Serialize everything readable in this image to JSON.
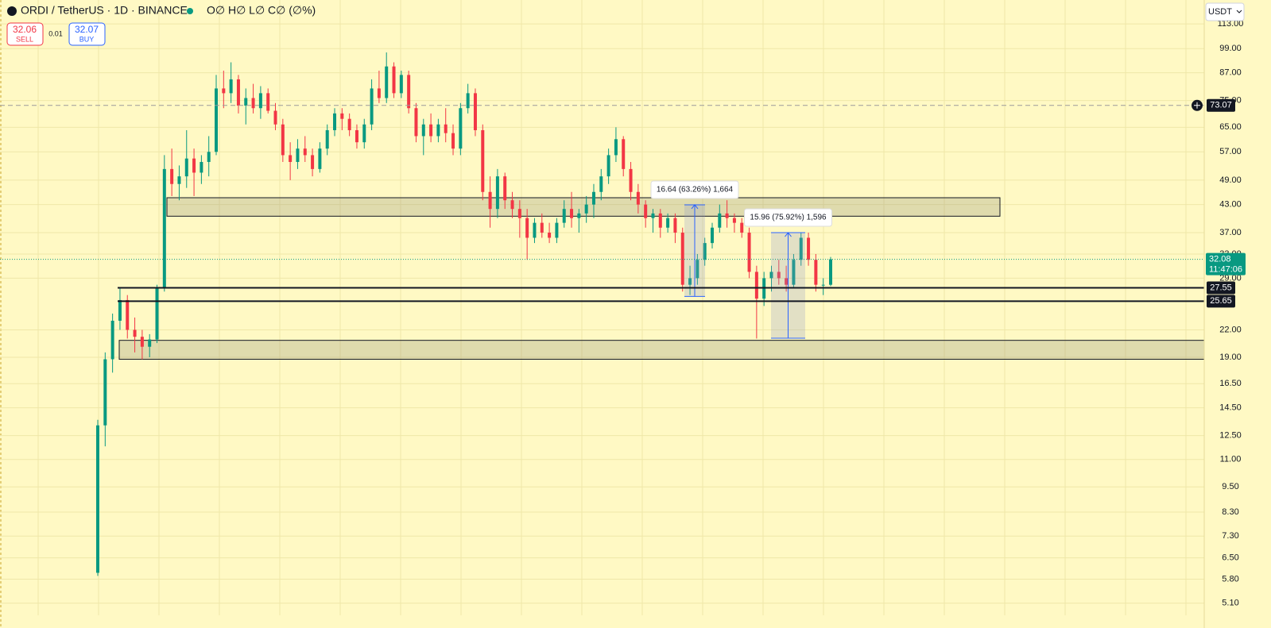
{
  "chart_data": {
    "type": "candlestick",
    "title": "ORDI / TetherUS · 1D · BINANCE",
    "ohlc_legend": "O∅ H∅ L∅ C∅ (∅%)",
    "sell": 32.06,
    "sell_label": "SELL",
    "spread": 0.01,
    "buy": 32.07,
    "buy_label": "BUY",
    "currency": "USDT",
    "log_scale": true,
    "grid": true,
    "up_color": "#089981",
    "down_color": "#f23645",
    "ylim": [
      4.78,
      128.4
    ],
    "yticks": [
      {
        "value": 5.1,
        "label": "5.10"
      },
      {
        "value": 5.8,
        "label": "5.80"
      },
      {
        "value": 6.5,
        "label": "6.50"
      },
      {
        "value": 7.3,
        "label": "7.30"
      },
      {
        "value": 8.3,
        "label": "8.30"
      },
      {
        "value": 9.5,
        "label": "9.50"
      },
      {
        "value": 11,
        "label": "11.00"
      },
      {
        "value": 12.5,
        "label": "12.50"
      },
      {
        "value": 14.5,
        "label": "14.50"
      },
      {
        "value": 16.5,
        "label": "16.50"
      },
      {
        "value": 19,
        "label": "19.00"
      },
      {
        "value": 22,
        "label": "22.00"
      },
      {
        "value": 29,
        "label": "29.00"
      },
      {
        "value": 33,
        "label": "33.00"
      },
      {
        "value": 37,
        "label": "37.00"
      },
      {
        "value": 43,
        "label": "43.00"
      },
      {
        "value": 49,
        "label": "49.00"
      },
      {
        "value": 57,
        "label": "57.00"
      },
      {
        "value": 65,
        "label": "65.00"
      },
      {
        "value": 75,
        "label": "75.00"
      },
      {
        "value": 87,
        "label": "87.00"
      },
      {
        "value": 99,
        "label": "99.00"
      },
      {
        "value": 113,
        "label": "113.00"
      }
    ],
    "ohlc": [
      [
        6.0,
        13.6,
        5.9,
        13.2
      ],
      [
        13.2,
        19.5,
        11.8,
        18.8
      ],
      [
        18.8,
        24.0,
        17.5,
        23.1
      ],
      [
        23.1,
        27.5,
        22.0,
        25.8
      ],
      [
        25.8,
        26.5,
        21.0,
        22.0
      ],
      [
        22.0,
        23.5,
        19.5,
        21.2
      ],
      [
        21.2,
        22.0,
        18.8,
        20.1
      ],
      [
        20.1,
        21.5,
        19.0,
        20.9
      ],
      [
        20.9,
        28.0,
        20.5,
        27.5
      ],
      [
        27.5,
        56,
        27.0,
        52
      ],
      [
        52,
        58,
        45,
        48
      ],
      [
        48,
        53,
        44,
        50
      ],
      [
        50,
        64,
        47,
        55
      ],
      [
        55,
        58,
        45,
        51
      ],
      [
        51,
        56,
        48,
        54
      ],
      [
        54,
        62,
        50,
        57
      ],
      [
        57,
        86,
        56,
        80
      ],
      [
        80,
        88,
        72,
        78
      ],
      [
        78,
        92,
        74,
        84
      ],
      [
        84,
        86,
        70,
        73
      ],
      [
        73,
        80,
        66,
        76
      ],
      [
        76,
        82,
        70,
        72
      ],
      [
        72,
        81,
        68,
        78
      ],
      [
        78,
        80,
        70,
        71
      ],
      [
        71,
        74,
        64,
        66
      ],
      [
        66,
        68,
        54,
        56
      ],
      [
        56,
        60,
        49,
        54
      ],
      [
        54,
        61,
        52,
        58
      ],
      [
        58,
        62,
        54,
        56
      ],
      [
        56,
        58,
        50,
        52
      ],
      [
        52,
        60,
        51,
        58
      ],
      [
        58,
        66,
        56,
        64
      ],
      [
        64,
        72,
        62,
        70
      ],
      [
        70,
        72,
        64,
        68
      ],
      [
        68,
        70,
        62,
        64
      ],
      [
        64,
        66,
        58,
        60
      ],
      [
        60,
        68,
        58,
        66
      ],
      [
        66,
        84,
        64,
        80
      ],
      [
        80,
        88,
        74,
        76
      ],
      [
        76,
        97,
        74,
        90
      ],
      [
        90,
        92,
        76,
        78
      ],
      [
        78,
        88,
        76,
        86
      ],
      [
        86,
        88,
        70,
        72
      ],
      [
        72,
        74,
        60,
        62
      ],
      [
        62,
        68,
        56,
        66
      ],
      [
        66,
        70,
        60,
        62
      ],
      [
        62,
        68,
        60,
        66
      ],
      [
        66,
        72,
        60,
        63
      ],
      [
        63,
        66,
        56,
        58
      ],
      [
        58,
        74,
        56,
        72
      ],
      [
        72,
        82,
        70,
        78
      ],
      [
        78,
        80,
        62,
        64
      ],
      [
        64,
        66,
        44,
        46
      ],
      [
        46,
        50,
        38,
        42
      ],
      [
        42,
        52,
        40,
        50
      ],
      [
        50,
        51,
        42,
        44
      ],
      [
        44,
        46,
        40,
        42
      ],
      [
        42,
        44,
        36,
        40
      ],
      [
        40,
        42,
        32,
        36
      ],
      [
        36,
        40,
        35,
        39
      ],
      [
        39,
        41,
        36,
        37
      ],
      [
        37,
        39,
        35,
        36
      ],
      [
        36,
        40,
        35,
        39
      ],
      [
        39,
        44,
        38,
        42
      ],
      [
        42,
        46,
        38,
        40
      ],
      [
        40,
        42,
        37,
        41
      ],
      [
        41,
        45,
        39,
        43
      ],
      [
        43,
        48,
        40,
        46
      ],
      [
        46,
        52,
        44,
        50
      ],
      [
        50,
        58,
        48,
        56
      ],
      [
        56,
        65,
        54,
        61
      ],
      [
        61,
        62,
        50,
        52
      ],
      [
        52,
        54,
        44,
        46
      ],
      [
        46,
        48,
        41,
        43
      ],
      [
        43,
        44,
        38,
        40
      ],
      [
        40,
        42,
        37,
        41
      ],
      [
        41,
        42,
        36,
        38
      ],
      [
        38,
        41,
        37,
        40
      ],
      [
        40,
        41,
        35,
        37
      ],
      [
        37,
        38,
        27,
        28
      ],
      [
        28,
        31,
        26.5,
        29
      ],
      [
        29,
        33,
        28,
        32
      ],
      [
        32,
        36,
        31,
        35
      ],
      [
        35,
        39,
        34,
        38
      ],
      [
        38,
        43,
        37,
        41
      ],
      [
        41,
        44,
        38,
        40
      ],
      [
        40,
        41,
        37,
        39
      ],
      [
        39,
        40,
        36,
        37
      ],
      [
        37,
        38,
        29,
        30
      ],
      [
        30,
        31,
        21,
        26
      ],
      [
        26,
        30,
        25,
        29
      ],
      [
        29,
        31,
        27,
        30
      ],
      [
        30,
        32,
        28,
        29
      ],
      [
        29,
        31,
        27,
        28
      ],
      [
        28,
        33,
        27.5,
        32
      ],
      [
        32,
        37,
        31,
        36
      ],
      [
        36,
        37,
        31,
        32
      ],
      [
        32,
        33,
        27,
        28
      ],
      [
        28,
        29,
        26.5,
        28
      ],
      [
        28,
        32.5,
        27.8,
        32.08
      ]
    ],
    "zones": [
      {
        "low": 40.4,
        "high": 44.6
      },
      {
        "low": 18.8,
        "high": 20.8
      }
    ],
    "levels": [
      {
        "value": 27.55
      },
      {
        "value": 25.65
      }
    ],
    "alert_level": 73.07,
    "last_price": 32.08,
    "countdown": "11:47:06",
    "measures": [
      {
        "label": "16.64 (63.26%) 1,664",
        "from": 26.3,
        "to": 42.94
      },
      {
        "label": "15.96 (75.92%) 1,596",
        "from": 21.04,
        "to": 37.0
      }
    ]
  }
}
